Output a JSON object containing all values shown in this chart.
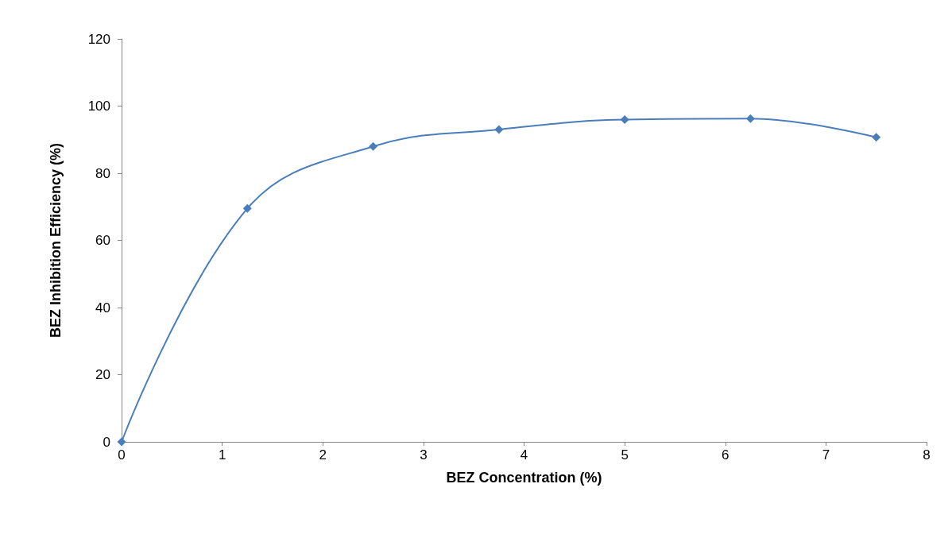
{
  "chart_data": {
    "type": "line",
    "xlabel": "BEZ Concentration (%)",
    "ylabel": "BEZ Inhibition Efficiency (%)",
    "x": [
      0,
      1.25,
      2.5,
      3.75,
      5,
      6.25,
      7.5
    ],
    "series": [
      {
        "color": "#4a7ebb",
        "values": [
          0,
          69.5,
          88,
          93,
          96,
          96.3,
          90.7
        ]
      }
    ],
    "xlim": [
      0,
      8
    ],
    "xticks": [
      0,
      1,
      2,
      3,
      4,
      5,
      6,
      7,
      8
    ],
    "ylim": [
      0,
      120
    ],
    "yticks": [
      0,
      20,
      40,
      60,
      80,
      100,
      120
    ],
    "grid": false,
    "marker": "diamond",
    "line_style": "solid"
  }
}
